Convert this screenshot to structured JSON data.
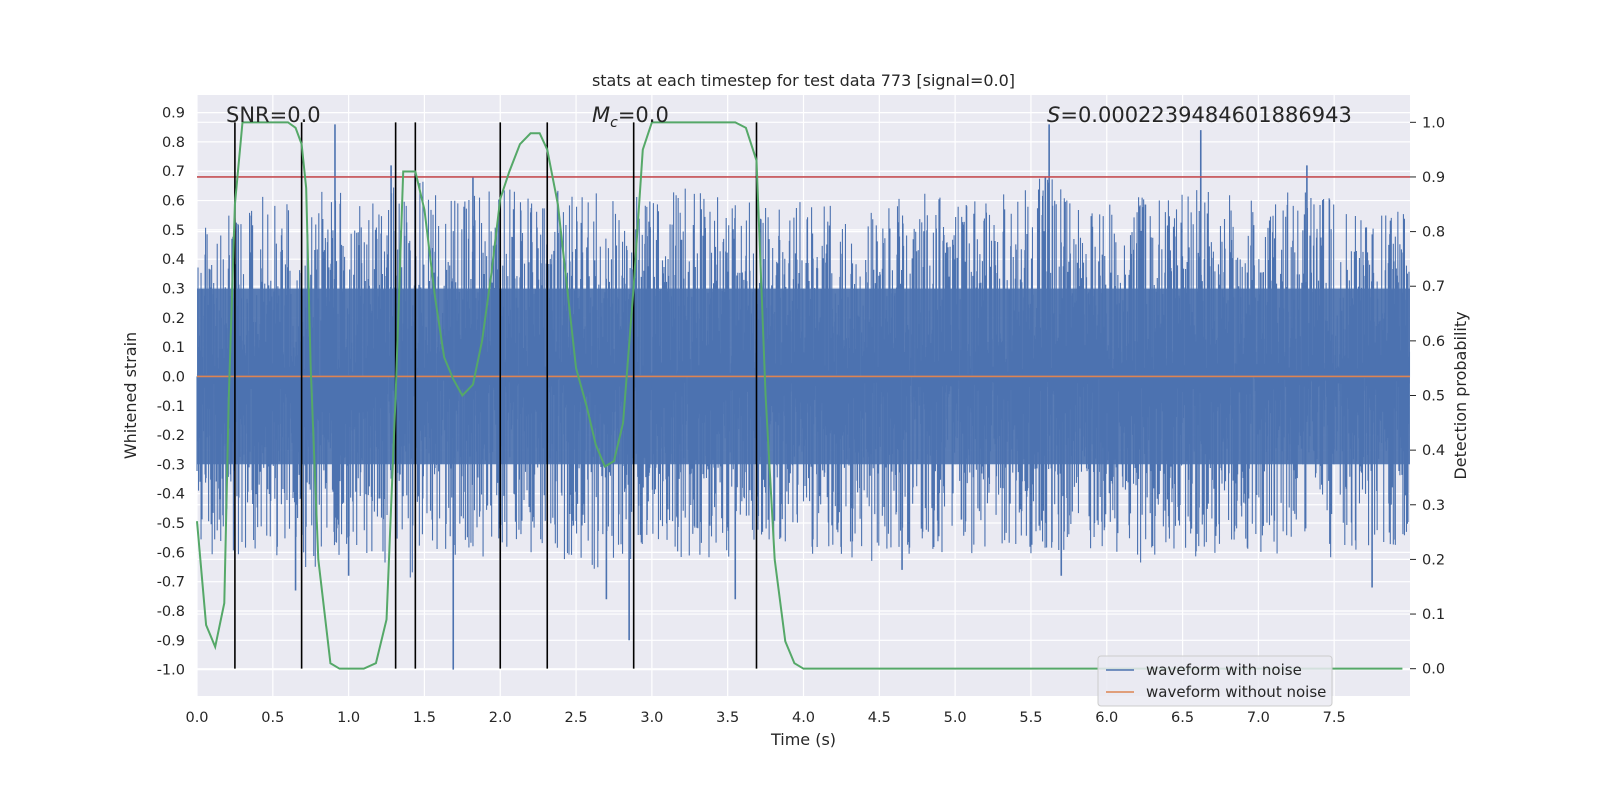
{
  "chart_data": {
    "type": "line",
    "title": "stats at each timestep for test data 773 [signal=0.0]",
    "xlabel": "Time (s)",
    "ylabel": "Whitened strain",
    "y2label": "Detection probability",
    "xlim": [
      0.0,
      8.0
    ],
    "ylim": [
      -1.09,
      0.96
    ],
    "y2lim": [
      -0.05,
      1.05
    ],
    "xticks": [
      "0.0",
      "0.5",
      "1.0",
      "1.5",
      "2.0",
      "2.5",
      "3.0",
      "3.5",
      "4.0",
      "4.5",
      "5.0",
      "5.5",
      "6.0",
      "6.5",
      "7.0",
      "7.5"
    ],
    "yticks": [
      "0.9",
      "0.8",
      "0.7",
      "0.6",
      "0.5",
      "0.4",
      "0.3",
      "0.2",
      "0.1",
      "0.0",
      "-0.1",
      "-0.2",
      "-0.3",
      "-0.4",
      "-0.5",
      "-0.6",
      "-0.7",
      "-0.8",
      "-0.9",
      "-1.0"
    ],
    "y2ticks": [
      "1.0",
      "0.9",
      "0.8",
      "0.7",
      "0.6",
      "0.5",
      "0.4",
      "0.3",
      "0.2",
      "0.1",
      "0.0"
    ],
    "annotations": {
      "snr": "SNR=0.0",
      "mc_symbol": "M",
      "mc_sub": "c",
      "mc_value": "=0.0",
      "s_symbol": "S",
      "s_value": "=0.0002239484601886943"
    },
    "threshold": {
      "value": 0.9,
      "axis": "right",
      "color": "#c44e52"
    },
    "vertical_lines_x": [
      0.25,
      0.69,
      1.31,
      1.44,
      2.0,
      2.31,
      2.88,
      3.69
    ],
    "noise_envelope": {
      "x": [
        0.0,
        0.2,
        0.4,
        0.6,
        0.8,
        1.0,
        1.2,
        1.4,
        1.6,
        1.8,
        2.0,
        2.2,
        2.4,
        2.6,
        2.8,
        3.0,
        3.2,
        3.4,
        3.6,
        3.8,
        4.0,
        4.2,
        4.4,
        4.6,
        4.8,
        5.0,
        5.2,
        5.4,
        5.6,
        5.8,
        6.0,
        6.2,
        6.4,
        6.6,
        6.8,
        7.0,
        7.2,
        7.4,
        7.6,
        7.8,
        8.0
      ],
      "upper": [
        0.5,
        0.55,
        0.62,
        0.6,
        0.65,
        0.62,
        0.6,
        0.7,
        0.64,
        0.62,
        0.68,
        0.6,
        0.64,
        0.62,
        0.66,
        0.6,
        0.65,
        0.62,
        0.6,
        0.58,
        0.6,
        0.58,
        0.62,
        0.6,
        0.64,
        0.6,
        0.62,
        0.64,
        0.7,
        0.62,
        0.6,
        0.64,
        0.62,
        0.66,
        0.62,
        0.6,
        0.64,
        0.62,
        0.6,
        0.58,
        0.55
      ],
      "lower": [
        -0.6,
        -0.62,
        -0.6,
        -0.64,
        -0.66,
        -0.6,
        -0.62,
        -0.7,
        -0.64,
        -0.62,
        -0.66,
        -0.6,
        -0.62,
        -0.66,
        -0.64,
        -0.6,
        -0.62,
        -0.64,
        -0.6,
        -0.6,
        -0.6,
        -0.62,
        -0.64,
        -0.6,
        -0.62,
        -0.6,
        -0.64,
        -0.62,
        -0.66,
        -0.6,
        -0.62,
        -0.64,
        -0.6,
        -0.62,
        -0.64,
        -0.6,
        -0.62,
        -0.64,
        -0.62,
        -0.6,
        -0.58
      ]
    },
    "spikes": [
      {
        "x": 0.91,
        "y": 0.86
      },
      {
        "x": 1.28,
        "y": 0.72
      },
      {
        "x": 1.69,
        "y": -1.0
      },
      {
        "x": 5.62,
        "y": 0.86
      },
      {
        "x": 6.62,
        "y": 0.84
      },
      {
        "x": 0.65,
        "y": -0.73
      },
      {
        "x": 2.7,
        "y": -0.76
      },
      {
        "x": 2.85,
        "y": -0.9
      },
      {
        "x": 3.55,
        "y": -0.76
      },
      {
        "x": 7.32,
        "y": 0.72
      },
      {
        "x": 1.0,
        "y": -0.68
      },
      {
        "x": 5.7,
        "y": -0.68
      },
      {
        "x": 7.75,
        "y": -0.72
      },
      {
        "x": 1.82,
        "y": 0.68
      },
      {
        "x": 4.65,
        "y": -0.66
      }
    ],
    "series": [
      {
        "name": "waveform with noise",
        "color": "#4c72b0",
        "axis": "left"
      },
      {
        "name": "waveform without noise",
        "color": "#dd8452",
        "axis": "left",
        "x": [
          0.0,
          8.0
        ],
        "values": [
          0.0,
          0.0
        ]
      },
      {
        "name": "detection probability",
        "color": "#55a868",
        "axis": "right",
        "x": [
          0.0,
          0.06,
          0.12,
          0.18,
          0.21,
          0.25,
          0.3,
          0.4,
          0.5,
          0.6,
          0.65,
          0.69,
          0.72,
          0.75,
          0.8,
          0.88,
          0.94,
          1.0,
          1.1,
          1.18,
          1.25,
          1.31,
          1.36,
          1.44,
          1.5,
          1.57,
          1.63,
          1.69,
          1.75,
          1.82,
          1.88,
          1.94,
          2.0,
          2.06,
          2.13,
          2.2,
          2.26,
          2.31,
          2.38,
          2.44,
          2.5,
          2.57,
          2.63,
          2.69,
          2.75,
          2.81,
          2.88,
          2.94,
          3.0,
          3.2,
          3.4,
          3.55,
          3.62,
          3.69,
          3.75,
          3.81,
          3.88,
          3.94,
          4.0,
          5.0,
          6.0,
          7.0,
          7.95
        ],
        "values": [
          0.27,
          0.08,
          0.04,
          0.12,
          0.5,
          0.85,
          1.0,
          1.0,
          1.0,
          1.0,
          0.99,
          0.96,
          0.88,
          0.55,
          0.2,
          0.01,
          0.0,
          0.0,
          0.0,
          0.01,
          0.09,
          0.5,
          0.91,
          0.91,
          0.84,
          0.68,
          0.57,
          0.53,
          0.5,
          0.52,
          0.6,
          0.72,
          0.86,
          0.91,
          0.96,
          0.98,
          0.98,
          0.95,
          0.85,
          0.7,
          0.55,
          0.48,
          0.41,
          0.37,
          0.38,
          0.45,
          0.7,
          0.95,
          1.0,
          1.0,
          1.0,
          1.0,
          0.99,
          0.93,
          0.5,
          0.2,
          0.05,
          0.01,
          0.0,
          0.0,
          0.0,
          0.0,
          0.0
        ]
      }
    ],
    "legend": {
      "placement": "lower-right",
      "entries": [
        {
          "label": "waveform with noise",
          "color": "#4c72b0"
        },
        {
          "label": "waveform without noise",
          "color": "#dd8452"
        }
      ]
    }
  }
}
